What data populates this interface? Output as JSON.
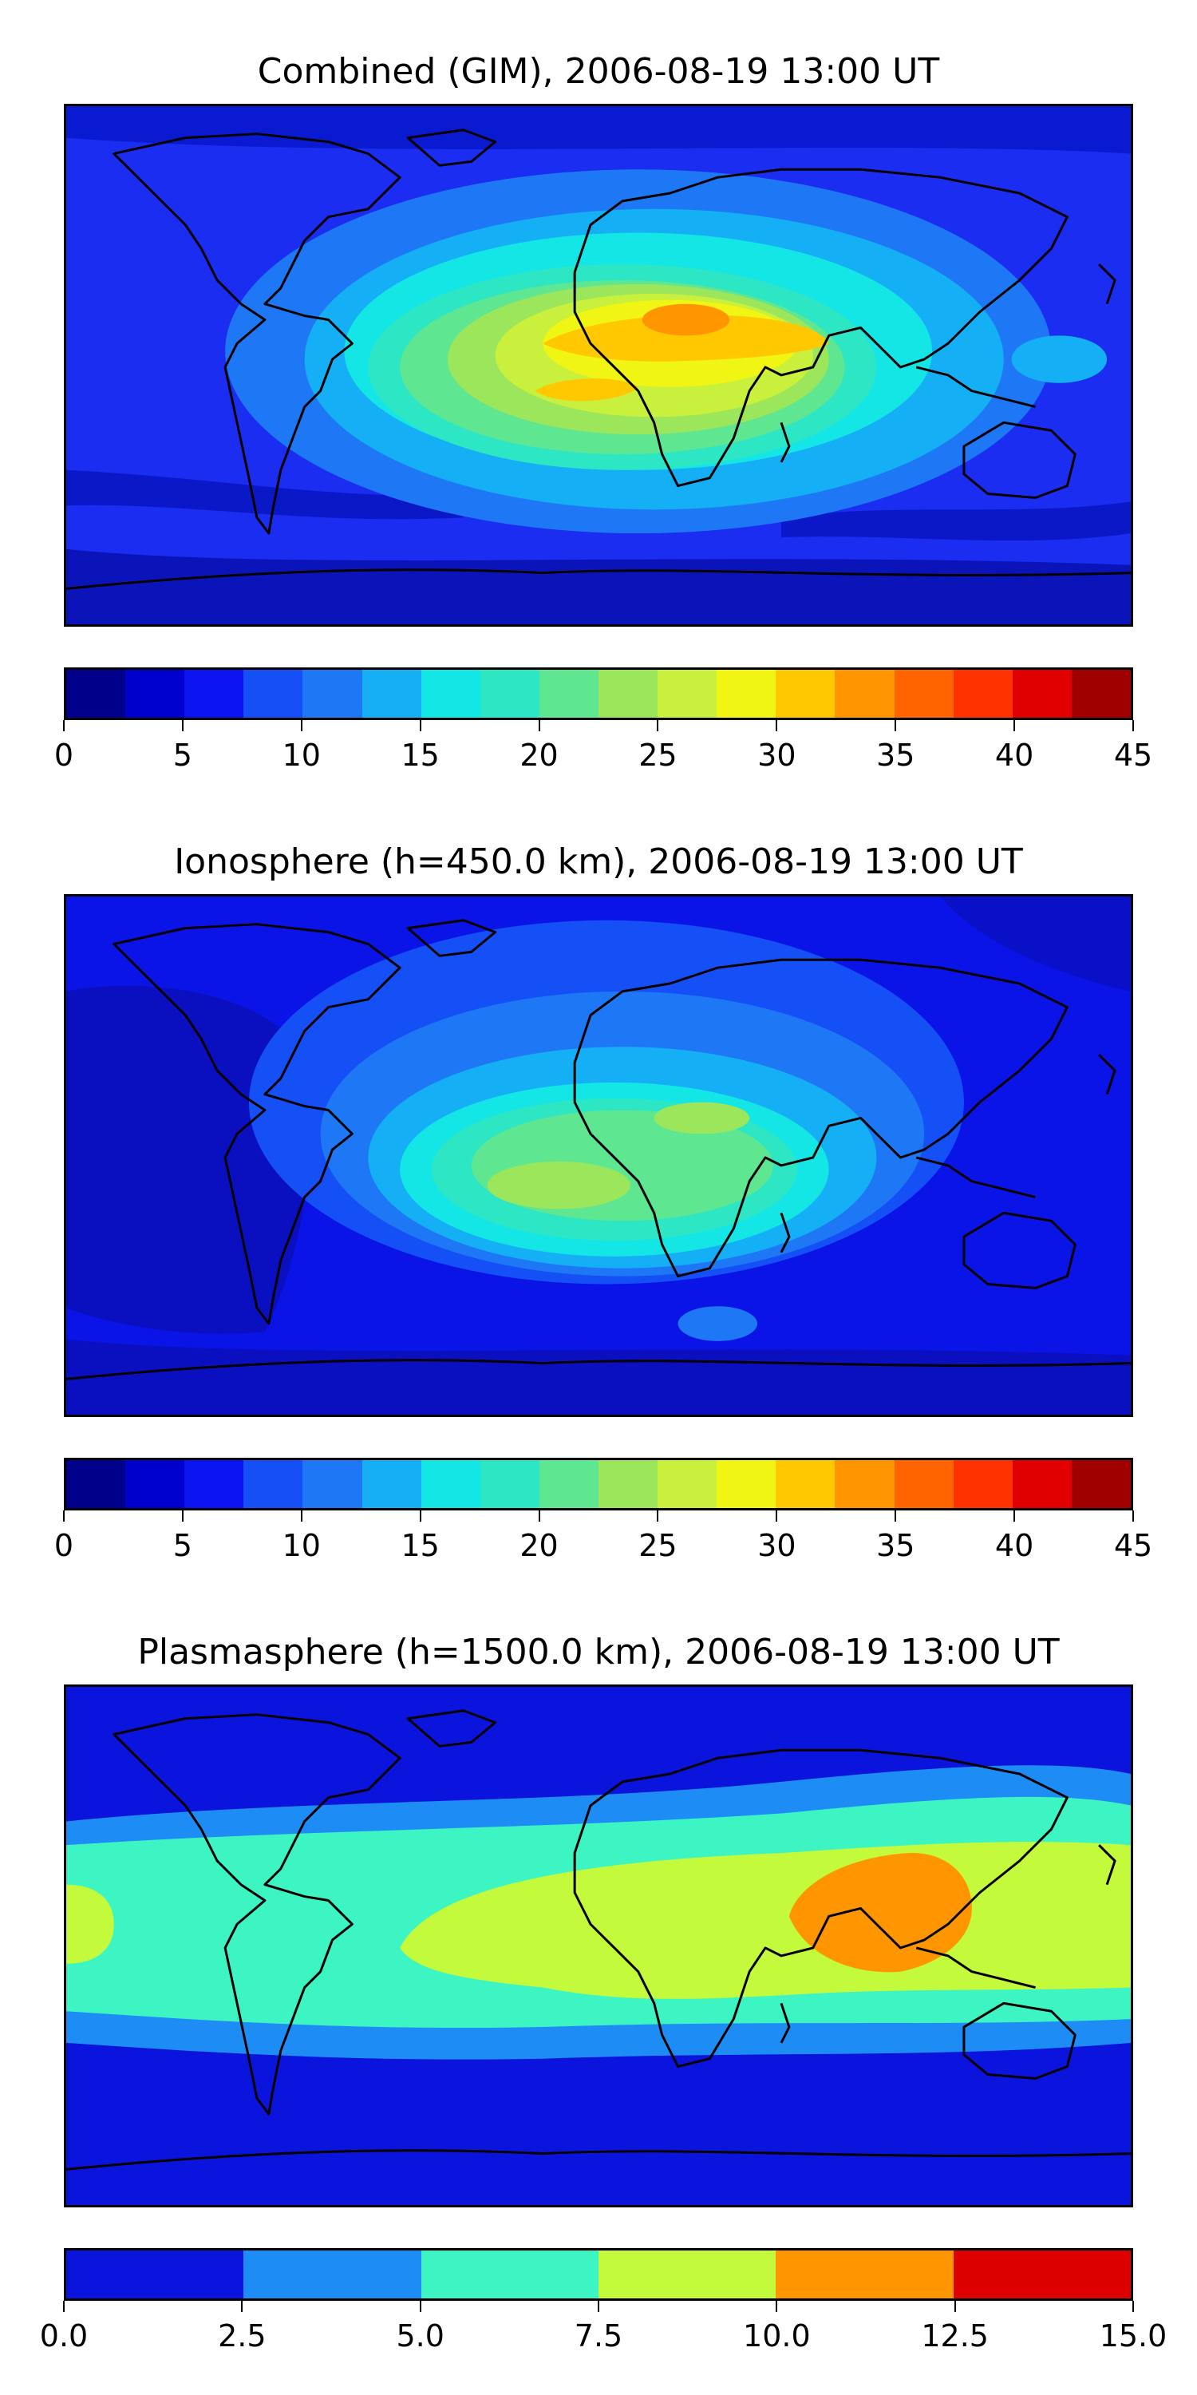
{
  "panels": [
    {
      "title": "Combined (GIM), 2006-08-19 13:00 UT",
      "background": "#1a2df0",
      "colorbar_colors": [
        "#00008b",
        "#0000cd",
        "#0a14f0",
        "#1450f5",
        "#1e78f5",
        "#14aff5",
        "#14e6e6",
        "#2de6c3",
        "#5fe691",
        "#9be65a",
        "#c8f03c",
        "#f0f514",
        "#ffc800",
        "#ff9600",
        "#ff6400",
        "#ff3200",
        "#e10000",
        "#a00000"
      ],
      "tick_labels": [
        "0",
        "5",
        "10",
        "15",
        "20",
        "25",
        "30",
        "35",
        "40",
        "45"
      ],
      "range": [
        0,
        45
      ]
    },
    {
      "title": "Ionosphere  (h=450.0 km), 2006-08-19 13:00 UT",
      "background": "#0a14e6",
      "colorbar_colors": [
        "#00008b",
        "#0000cd",
        "#0a14f0",
        "#1450f5",
        "#1e78f5",
        "#14aff5",
        "#14e6e6",
        "#2de6c3",
        "#5fe691",
        "#9be65a",
        "#c8f03c",
        "#f0f514",
        "#ffc800",
        "#ff9600",
        "#ff6400",
        "#ff3200",
        "#e10000",
        "#a00000"
      ],
      "tick_labels": [
        "0",
        "5",
        "10",
        "15",
        "20",
        "25",
        "30",
        "35",
        "40",
        "45"
      ],
      "range": [
        0,
        45
      ]
    },
    {
      "title": "Plasmasphere (h=1500.0 km), 2006-08-19 13:00 UT",
      "background": "#0a14dc",
      "colorbar_colors": [
        "#0a14dc",
        "#1e8cf5",
        "#3cf5c3",
        "#c3fa3c",
        "#ff9600",
        "#dc0000"
      ],
      "tick_labels": [
        "0.0",
        "2.5",
        "5.0",
        "7.5",
        "10.0",
        "12.5",
        "15.0"
      ],
      "range": [
        0,
        15
      ]
    }
  ]
}
